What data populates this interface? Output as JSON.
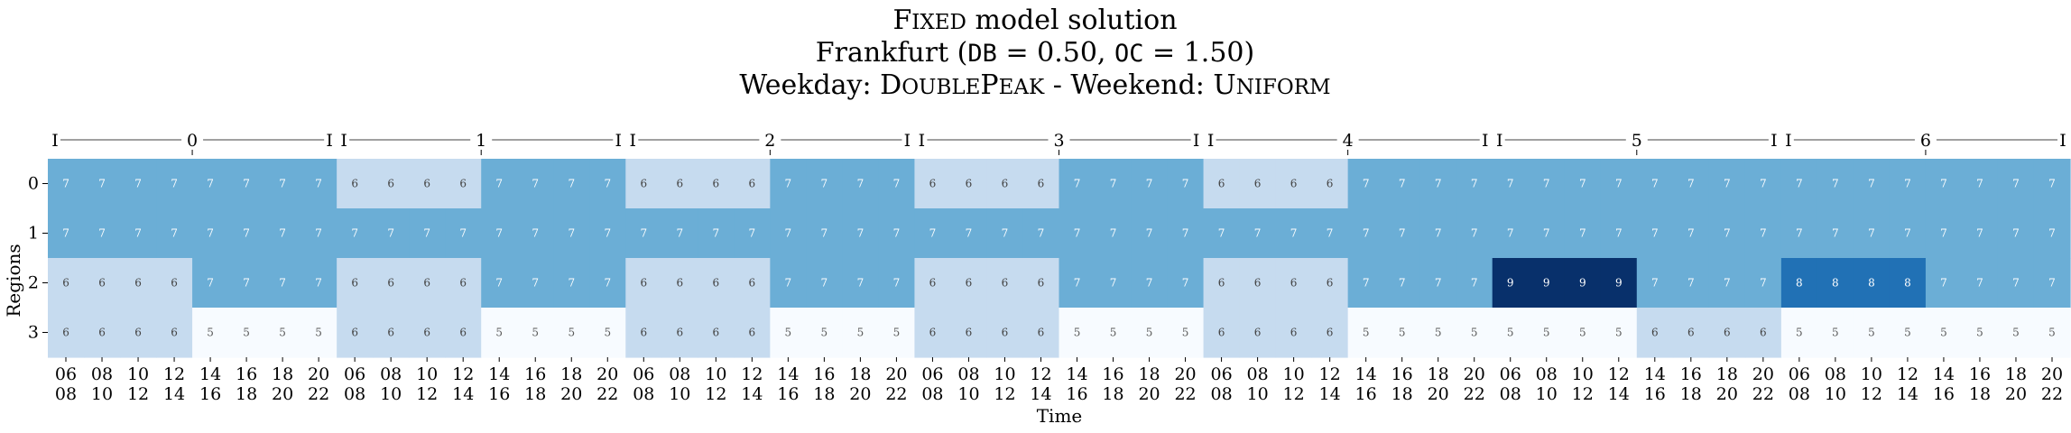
{
  "chart_data": {
    "type": "heatmap",
    "title_lines": [
      "Fixed model solution",
      "Frankfurt (DB = 0.50, OC = 1.50)",
      "Weekday: DoublePeak - Weekend: Uniform"
    ],
    "xlabel": "Time",
    "ylabel": "Regions",
    "rows": [
      "0",
      "1",
      "2",
      "3"
    ],
    "days": [
      "0",
      "1",
      "2",
      "3",
      "4",
      "5",
      "6"
    ],
    "time_ticks_top": [
      "06",
      "08",
      "10",
      "12",
      "14",
      "16",
      "18",
      "20",
      "06",
      "08",
      "10",
      "12",
      "14",
      "16",
      "18",
      "20",
      "06",
      "08",
      "10",
      "12",
      "14",
      "16",
      "18",
      "20",
      "06",
      "08",
      "10",
      "12",
      "14",
      "16",
      "18",
      "20",
      "06",
      "08",
      "10",
      "12",
      "14",
      "16",
      "18",
      "20",
      "06",
      "08",
      "10",
      "12",
      "14",
      "16",
      "18",
      "20",
      "06",
      "08",
      "10",
      "12",
      "14",
      "16",
      "18",
      "20"
    ],
    "time_ticks_bottom": [
      "08",
      "10",
      "12",
      "14",
      "16",
      "18",
      "20",
      "22",
      "08",
      "10",
      "12",
      "14",
      "16",
      "18",
      "20",
      "22",
      "08",
      "10",
      "12",
      "14",
      "16",
      "18",
      "20",
      "22",
      "08",
      "10",
      "12",
      "14",
      "16",
      "18",
      "20",
      "22",
      "08",
      "10",
      "12",
      "14",
      "16",
      "18",
      "20",
      "22",
      "08",
      "10",
      "12",
      "14",
      "16",
      "18",
      "20",
      "22",
      "08",
      "10",
      "12",
      "14",
      "16",
      "18",
      "20",
      "22"
    ],
    "values": [
      [
        7,
        7,
        7,
        7,
        7,
        7,
        7,
        7,
        6,
        6,
        6,
        6,
        7,
        7,
        7,
        7,
        6,
        6,
        6,
        6,
        7,
        7,
        7,
        7,
        6,
        6,
        6,
        6,
        7,
        7,
        7,
        7,
        6,
        6,
        6,
        6,
        7,
        7,
        7,
        7,
        7,
        7,
        7,
        7,
        7,
        7,
        7,
        7,
        7,
        7,
        7,
        7,
        7,
        7,
        7,
        7
      ],
      [
        7,
        7,
        7,
        7,
        7,
        7,
        7,
        7,
        7,
        7,
        7,
        7,
        7,
        7,
        7,
        7,
        7,
        7,
        7,
        7,
        7,
        7,
        7,
        7,
        7,
        7,
        7,
        7,
        7,
        7,
        7,
        7,
        7,
        7,
        7,
        7,
        7,
        7,
        7,
        7,
        7,
        7,
        7,
        7,
        7,
        7,
        7,
        7,
        7,
        7,
        7,
        7,
        7,
        7,
        7,
        7
      ],
      [
        6,
        6,
        6,
        6,
        7,
        7,
        7,
        7,
        6,
        6,
        6,
        6,
        7,
        7,
        7,
        7,
        6,
        6,
        6,
        6,
        7,
        7,
        7,
        7,
        6,
        6,
        6,
        6,
        7,
        7,
        7,
        7,
        6,
        6,
        6,
        6,
        7,
        7,
        7,
        7,
        9,
        9,
        9,
        9,
        7,
        7,
        7,
        7,
        8,
        8,
        8,
        8,
        7,
        7,
        7,
        7
      ],
      [
        6,
        6,
        6,
        6,
        5,
        5,
        5,
        5,
        6,
        6,
        6,
        6,
        5,
        5,
        5,
        5,
        6,
        6,
        6,
        6,
        5,
        5,
        5,
        5,
        6,
        6,
        6,
        6,
        5,
        5,
        5,
        5,
        6,
        6,
        6,
        6,
        5,
        5,
        5,
        5,
        5,
        5,
        5,
        5,
        6,
        6,
        6,
        6,
        5,
        5,
        5,
        5,
        5,
        5,
        5,
        5
      ]
    ],
    "colors": {
      "5": "#f7fbff",
      "6": "#c6dbef",
      "7": "#6baed6",
      "8": "#2171b5",
      "9": "#08306b"
    },
    "grid": false,
    "legend": "none"
  }
}
